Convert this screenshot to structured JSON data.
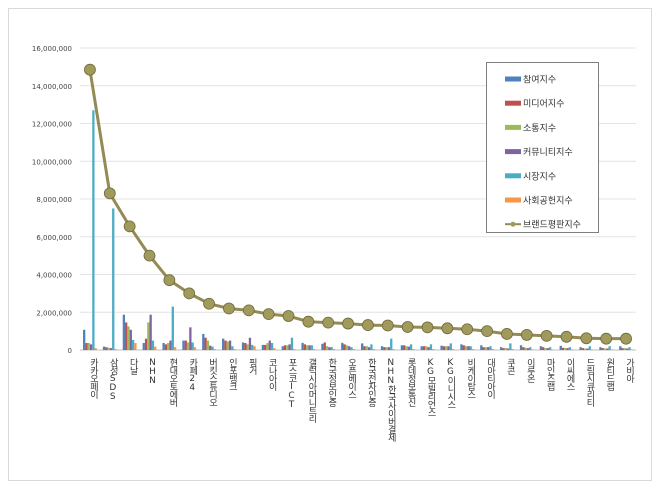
{
  "chart_data": {
    "type": "bar",
    "title": "",
    "xlabel": "",
    "ylabel": "",
    "ylim": [
      0,
      16000000
    ],
    "yticks": [
      "0",
      "2,000,000",
      "4,000,000",
      "6,000,000",
      "8,000,000",
      "10,000,000",
      "12,000,000",
      "14,000,000",
      "16,000,000"
    ],
    "grid": true,
    "legend_position": "top-right",
    "categories": [
      "카카오페이",
      "삼성SDS",
      "다날",
      "NHN",
      "현대오토에버",
      "카페24",
      "버킷스튜디오",
      "인포뱅크",
      "핑거",
      "코나아이",
      "포스코ICT",
      "갤럭시아머니트리",
      "한국정보인증",
      "오픈베이스",
      "한국전자인증",
      "NHN한국사이버결제",
      "롯데정보통신",
      "KG모빌리언스",
      "KG이니시스",
      "비케이탑스",
      "대아티아이",
      "쿠콘",
      "이루온",
      "마인즈랩",
      "이씨에스",
      "드림시큐리티",
      "원티드랩",
      "가비아"
    ],
    "series": [
      {
        "name": "참여지수",
        "type": "bar",
        "color": "#4f81bd",
        "values": [
          1070000,
          180000,
          1870000,
          370000,
          370000,
          500000,
          850000,
          600000,
          400000,
          270000,
          200000,
          380000,
          330000,
          380000,
          350000,
          200000,
          250000,
          200000,
          230000,
          300000,
          250000,
          150000,
          250000,
          200000,
          220000,
          150000,
          150000,
          200000
        ]
      },
      {
        "name": "미디어지수",
        "type": "bar",
        "color": "#c0504d",
        "values": [
          370000,
          150000,
          1460000,
          600000,
          300000,
          500000,
          650000,
          500000,
          370000,
          270000,
          250000,
          300000,
          400000,
          300000,
          200000,
          150000,
          250000,
          200000,
          200000,
          250000,
          150000,
          100000,
          150000,
          150000,
          120000,
          100000,
          100000,
          100000
        ]
      },
      {
        "name": "소통지수",
        "type": "bar",
        "color": "#9bbb59",
        "values": [
          370000,
          120000,
          1250000,
          1460000,
          370000,
          400000,
          500000,
          450000,
          300000,
          370000,
          250000,
          250000,
          200000,
          250000,
          200000,
          150000,
          200000,
          200000,
          200000,
          200000,
          150000,
          100000,
          120000,
          100000,
          100000,
          80000,
          80000,
          100000
        ]
      },
      {
        "name": "커뮤니티지수",
        "type": "bar",
        "color": "#8064a2",
        "values": [
          300000,
          100000,
          1070000,
          1870000,
          500000,
          1200000,
          230000,
          500000,
          650000,
          500000,
          300000,
          250000,
          150000,
          200000,
          150000,
          150000,
          180000,
          150000,
          200000,
          200000,
          150000,
          80000,
          100000,
          100000,
          100000,
          80000,
          80000,
          80000
        ]
      },
      {
        "name": "시장지수",
        "type": "bar",
        "color": "#4bacc6",
        "values": [
          12700000,
          7500000,
          530000,
          500000,
          2300000,
          400000,
          180000,
          200000,
          270000,
          370000,
          650000,
          250000,
          150000,
          150000,
          300000,
          600000,
          300000,
          300000,
          350000,
          200000,
          200000,
          350000,
          150000,
          150000,
          150000,
          200000,
          200000,
          150000
        ]
      },
      {
        "name": "사회공헌지수",
        "type": "bar",
        "color": "#f79646",
        "values": [
          100000,
          50000,
          370000,
          180000,
          150000,
          150000,
          50000,
          50000,
          200000,
          100000,
          50000,
          50000,
          50000,
          50000,
          50000,
          50000,
          50000,
          50000,
          50000,
          50000,
          50000,
          50000,
          30000,
          30000,
          30000,
          30000,
          30000,
          30000
        ]
      },
      {
        "name": "브랜드평판지수",
        "type": "line",
        "color": "#948a54",
        "values": [
          14850000,
          8300000,
          6550000,
          5000000,
          3700000,
          3000000,
          2450000,
          2200000,
          2100000,
          1900000,
          1800000,
          1500000,
          1450000,
          1400000,
          1320000,
          1300000,
          1220000,
          1200000,
          1150000,
          1100000,
          1000000,
          850000,
          800000,
          750000,
          700000,
          620000,
          600000,
          600000
        ]
      }
    ]
  }
}
